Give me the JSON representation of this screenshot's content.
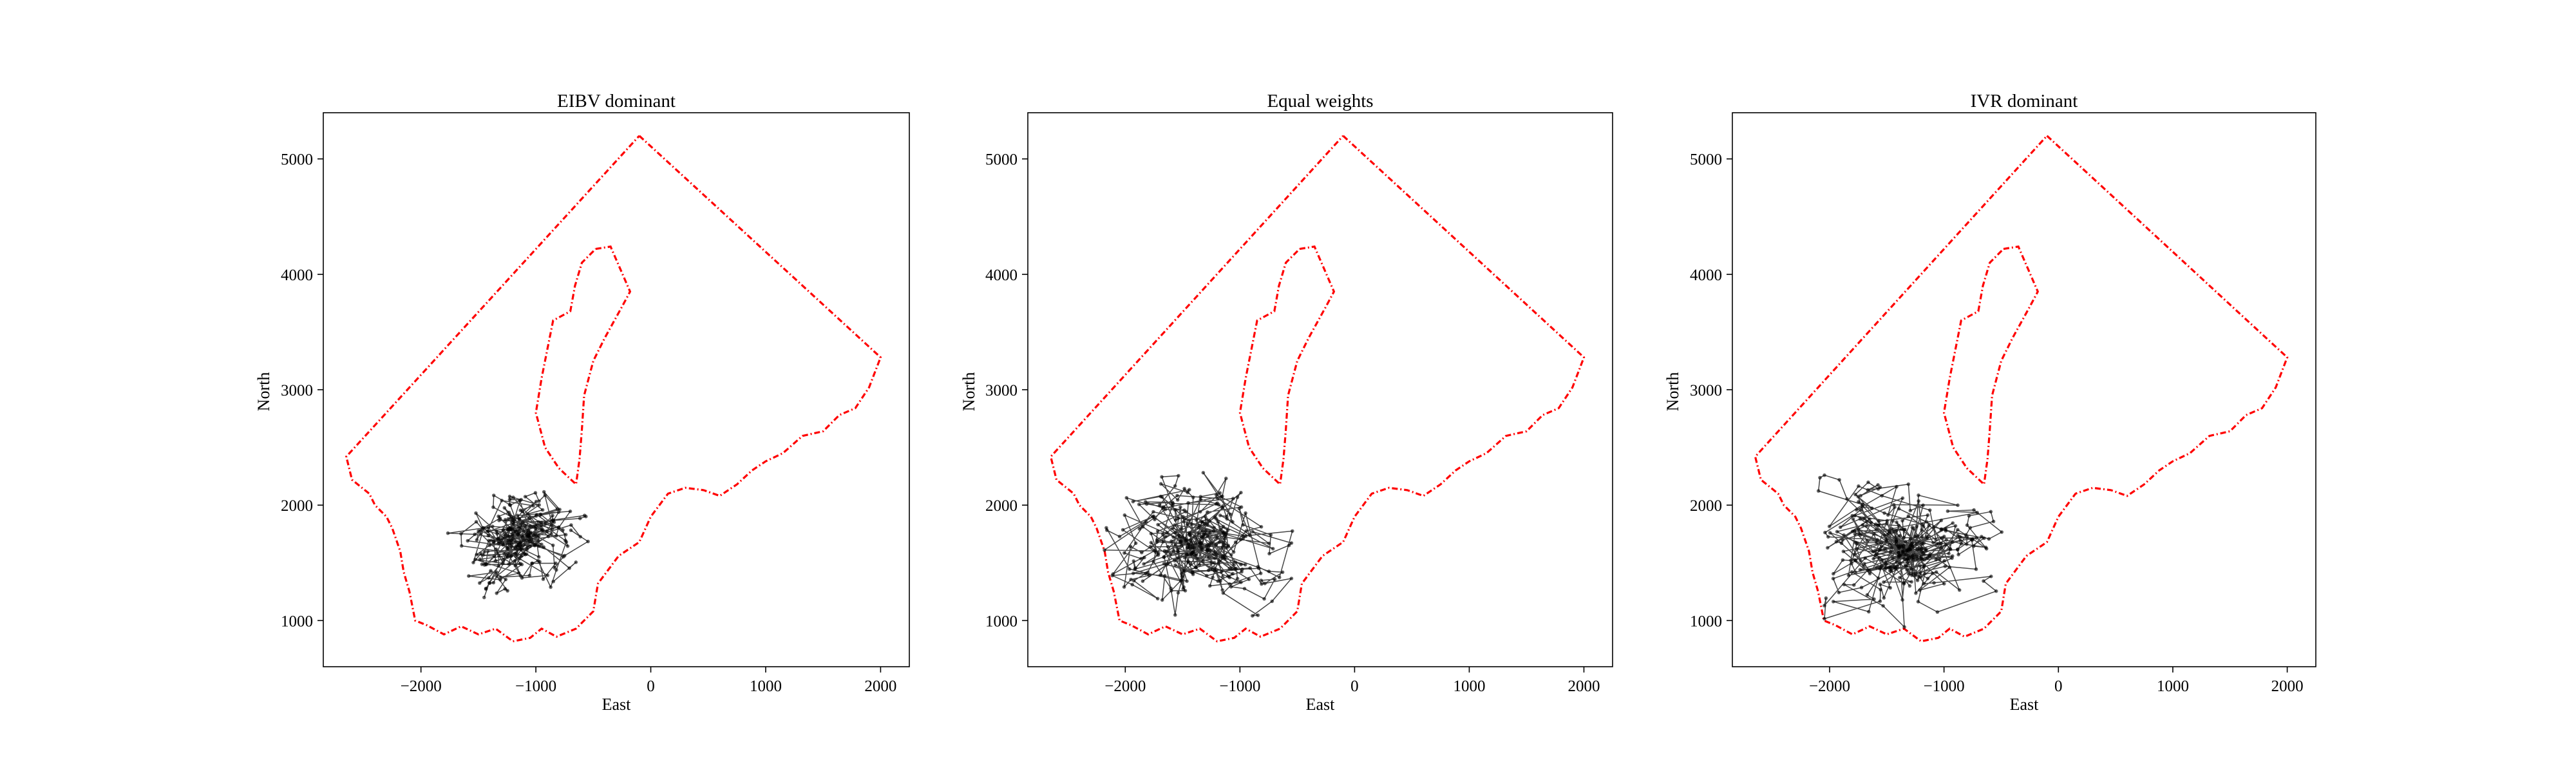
{
  "figure": {
    "background": "#ffffff"
  },
  "chart_data": [
    {
      "type": "line",
      "title": "EIBV dominant",
      "xlabel": "East",
      "ylabel": "North",
      "xlim": [
        -2850,
        2250
      ],
      "ylim": [
        600,
        5400
      ],
      "xticks": [
        -2000,
        -1000,
        0,
        1000,
        2000
      ],
      "yticks": [
        1000,
        2000,
        3000,
        4000,
        5000
      ],
      "xtick_labels": [
        "−2000",
        "−1000",
        "0",
        "1000",
        "2000"
      ],
      "ytick_labels": [
        "1000",
        "2000",
        "3000",
        "4000",
        "5000"
      ],
      "grid": false,
      "trajectory": {
        "start": [
          -1450,
          1200
        ],
        "center": [
          -1180,
          1680
        ],
        "spread": [
          400,
          280
        ],
        "count": 260,
        "color": "#000000"
      }
    },
    {
      "type": "line",
      "title": "Equal weights",
      "xlabel": "East",
      "ylabel": "North",
      "xlim": [
        -2850,
        2250
      ],
      "ylim": [
        600,
        5400
      ],
      "xticks": [
        -2000,
        -1000,
        0,
        1000,
        2000
      ],
      "yticks": [
        1000,
        2000,
        3000,
        4000,
        5000
      ],
      "xtick_labels": [
        "−2000",
        "−1000",
        "0",
        "1000",
        "2000"
      ],
      "ytick_labels": [
        "1000",
        "2000",
        "3000",
        "4000",
        "5000"
      ],
      "grid": false,
      "trajectory": {
        "start": [
          -1150,
          1380
        ],
        "center": [
          -1400,
          1650
        ],
        "spread": [
          560,
          440
        ],
        "count": 320,
        "color": "#000000"
      }
    },
    {
      "type": "line",
      "title": "IVR dominant",
      "xlabel": "East",
      "ylabel": "North",
      "xlim": [
        -2850,
        2250
      ],
      "ylim": [
        600,
        5400
      ],
      "xticks": [
        -2000,
        -1000,
        0,
        1000,
        2000
      ],
      "yticks": [
        1000,
        2000,
        3000,
        4000,
        5000
      ],
      "xtick_labels": [
        "−2000",
        "−1000",
        "0",
        "1000",
        "2000"
      ],
      "ytick_labels": [
        "1000",
        "2000",
        "3000",
        "4000",
        "5000"
      ],
      "grid": false,
      "trajectory": {
        "start": [
          -1300,
          1300
        ],
        "center": [
          -1300,
          1600
        ],
        "spread": [
          580,
          420
        ],
        "count": 320,
        "color": "#000000"
      }
    }
  ],
  "boundary": {
    "color": "#ff0000",
    "outer": [
      [
        -100,
        5200
      ],
      [
        2000,
        3280
      ],
      [
        1900,
        3020
      ],
      [
        1780,
        2840
      ],
      [
        1640,
        2780
      ],
      [
        1500,
        2640
      ],
      [
        1320,
        2600
      ],
      [
        1150,
        2450
      ],
      [
        1000,
        2380
      ],
      [
        880,
        2300
      ],
      [
        750,
        2180
      ],
      [
        600,
        2080
      ],
      [
        460,
        2130
      ],
      [
        300,
        2150
      ],
      [
        150,
        2100
      ],
      [
        0,
        1900
      ],
      [
        -100,
        1680
      ],
      [
        -280,
        1560
      ],
      [
        -460,
        1320
      ],
      [
        -500,
        1080
      ],
      [
        -650,
        930
      ],
      [
        -820,
        860
      ],
      [
        -950,
        930
      ],
      [
        -1050,
        850
      ],
      [
        -1200,
        820
      ],
      [
        -1350,
        930
      ],
      [
        -1500,
        880
      ],
      [
        -1650,
        950
      ],
      [
        -1800,
        880
      ],
      [
        -1950,
        960
      ],
      [
        -2050,
        1000
      ],
      [
        -2100,
        1250
      ],
      [
        -2150,
        1420
      ],
      [
        -2180,
        1600
      ],
      [
        -2250,
        1800
      ],
      [
        -2300,
        1900
      ],
      [
        -2400,
        2000
      ],
      [
        -2450,
        2100
      ],
      [
        -2600,
        2220
      ],
      [
        -2650,
        2420
      ],
      [
        -100,
        5200
      ]
    ],
    "inner": [
      [
        -480,
        4220
      ],
      [
        -350,
        4240
      ],
      [
        -180,
        3850
      ],
      [
        -250,
        3720
      ],
      [
        -400,
        3450
      ],
      [
        -500,
        3250
      ],
      [
        -580,
        2950
      ],
      [
        -600,
        2650
      ],
      [
        -620,
        2400
      ],
      [
        -650,
        2180
      ],
      [
        -800,
        2320
      ],
      [
        -920,
        2500
      ],
      [
        -1000,
        2800
      ],
      [
        -950,
        3100
      ],
      [
        -900,
        3350
      ],
      [
        -850,
        3600
      ],
      [
        -700,
        3680
      ],
      [
        -660,
        3900
      ],
      [
        -600,
        4100
      ],
      [
        -480,
        4220
      ]
    ]
  }
}
